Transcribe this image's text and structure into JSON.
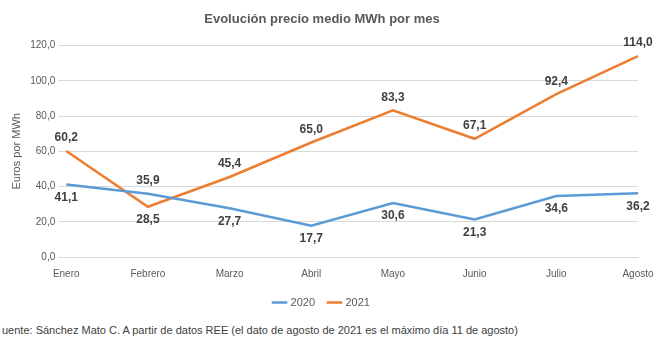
{
  "chart_data": {
    "type": "line",
    "title": "Evolución precio medio MWh por mes",
    "y_label": "Euros por MWh",
    "source": "uente: Sánchez Mato C.  A partir de datos REE (el dato de agosto de 2021 es el máximo día 11 de agosto)",
    "categories": [
      "Enero",
      "Febrero",
      "Marzo",
      "Abril",
      "Mayo",
      "Junio",
      "Julio",
      "Agosto"
    ],
    "series": [
      {
        "name": "2020",
        "color": "#5b9bd5",
        "marker": "none",
        "line_style": "solid",
        "values": [
          41.1,
          35.9,
          27.7,
          17.7,
          30.6,
          21.3,
          34.6,
          36.2
        ],
        "value_labels": [
          "41,1",
          "35,9",
          "27,7",
          "17,7",
          "30,6",
          "21,3",
          "34,6",
          "36,2"
        ]
      },
      {
        "name": "2021",
        "color": "#ed7d31",
        "marker": "none",
        "line_style": "solid",
        "values": [
          60.2,
          28.5,
          45.4,
          65.0,
          83.3,
          67.1,
          92.4,
          114.0
        ],
        "value_labels": [
          "60,2",
          "28,5",
          "45,4",
          "65,0",
          "83,3",
          "67,1",
          "92,4",
          "114,0"
        ]
      }
    ],
    "ylim": [
      0,
      120
    ],
    "yticks": [
      {
        "value": 0,
        "label": "0,0"
      },
      {
        "value": 20,
        "label": "20,0"
      },
      {
        "value": 40,
        "label": "40,0"
      },
      {
        "value": 60,
        "label": "60,0"
      },
      {
        "value": 80,
        "label": "80,0"
      },
      {
        "value": 100,
        "label": "100,0"
      },
      {
        "value": 120,
        "label": "120,0"
      }
    ],
    "grid": true,
    "legend": "bottom",
    "data_labels": true
  }
}
